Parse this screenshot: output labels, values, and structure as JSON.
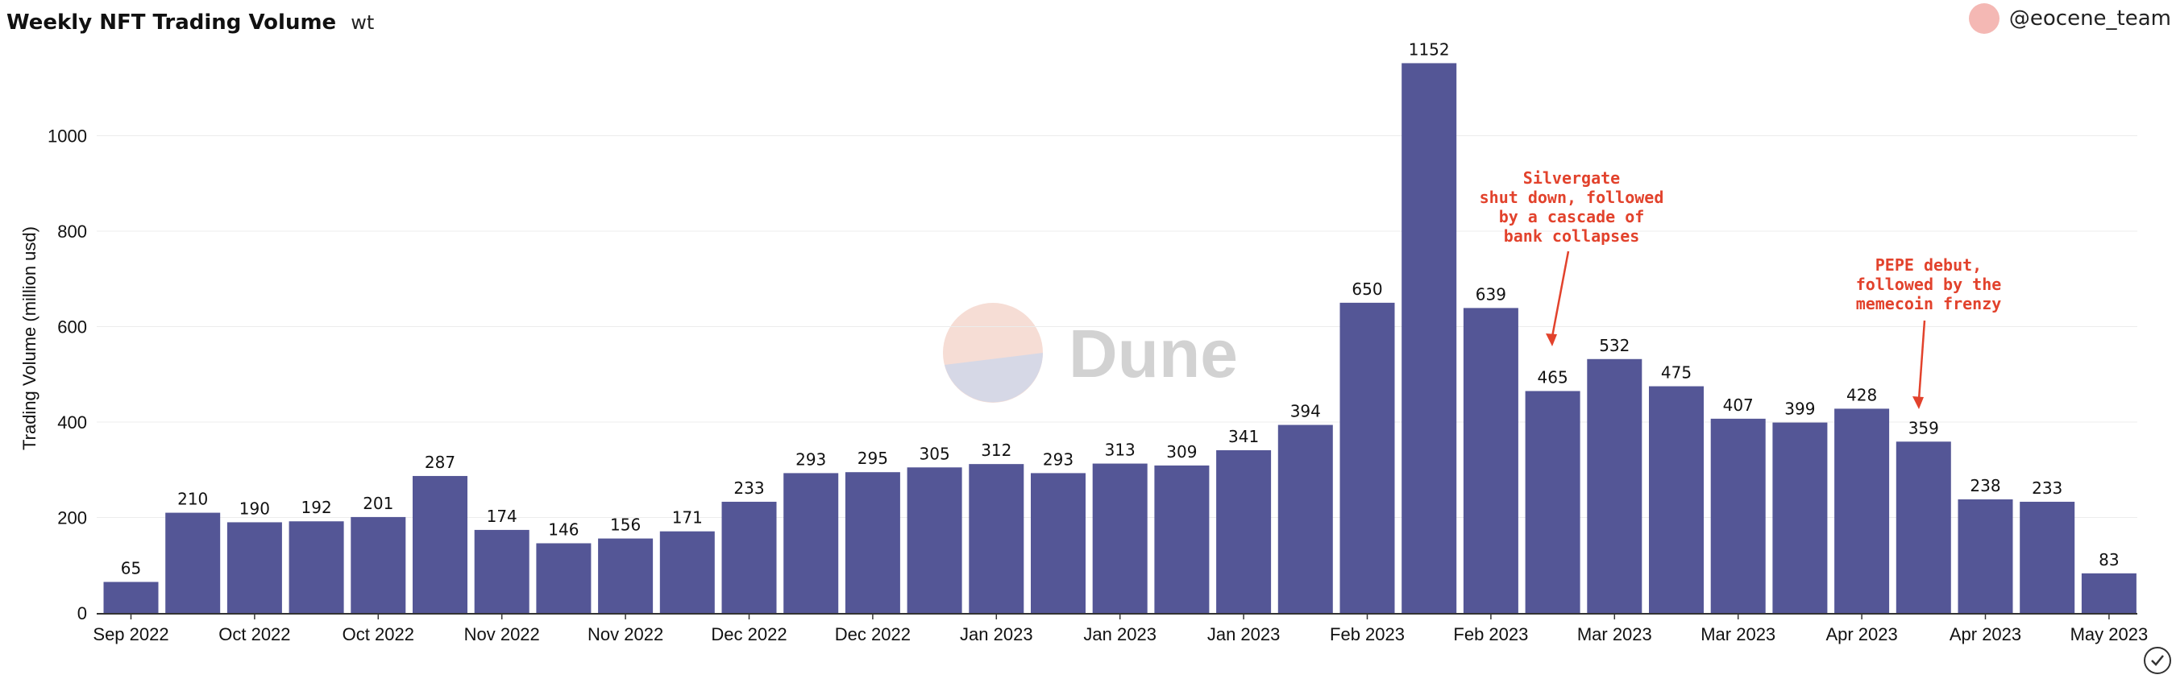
{
  "header": {
    "title": "Weekly NFT Trading Volume",
    "subtitle": "wt"
  },
  "author": {
    "name": "@eocene_team"
  },
  "watermark": "Dune",
  "colors": {
    "bar": "#545696",
    "annotation": "#e2422c",
    "avatar": "#f4b8b4"
  },
  "chart_data": {
    "type": "bar",
    "title": "Weekly NFT Trading Volume",
    "ylabel": "Trading Volume (million usd)",
    "xlabel": "",
    "ylim": [
      0,
      1150
    ],
    "yticks": [
      0,
      200,
      400,
      600,
      800,
      1000
    ],
    "grid": true,
    "values": [
      65,
      210,
      190,
      192,
      201,
      287,
      174,
      146,
      156,
      171,
      233,
      293,
      295,
      305,
      312,
      293,
      313,
      309,
      341,
      394,
      650,
      1152,
      639,
      465,
      532,
      475,
      407,
      399,
      428,
      359,
      238,
      233,
      83
    ],
    "xtick_labels": [
      {
        "index": 0,
        "label": "Sep 2022"
      },
      {
        "index": 2,
        "label": "Oct 2022"
      },
      {
        "index": 4,
        "label": "Oct 2022"
      },
      {
        "index": 6,
        "label": "Nov 2022"
      },
      {
        "index": 8,
        "label": "Nov 2022"
      },
      {
        "index": 10,
        "label": "Dec 2022"
      },
      {
        "index": 12,
        "label": "Dec 2022"
      },
      {
        "index": 14,
        "label": "Jan 2023"
      },
      {
        "index": 16,
        "label": "Jan 2023"
      },
      {
        "index": 18,
        "label": "Jan 2023"
      },
      {
        "index": 20,
        "label": "Feb 2023"
      },
      {
        "index": 22,
        "label": "Feb 2023"
      },
      {
        "index": 24,
        "label": "Mar 2023"
      },
      {
        "index": 26,
        "label": "Mar 2023"
      },
      {
        "index": 28,
        "label": "Apr 2023"
      },
      {
        "index": 30,
        "label": "Apr 2023"
      },
      {
        "index": 32,
        "label": "May 2023"
      }
    ],
    "annotations": [
      {
        "index": 23,
        "lines": [
          "Silvergate",
          "shut down, followed",
          "by a cascade of",
          "bank collapses"
        ]
      },
      {
        "index": 29,
        "lines": [
          "PEPE debut,",
          "followed by the",
          "memecoin frenzy"
        ]
      }
    ]
  }
}
